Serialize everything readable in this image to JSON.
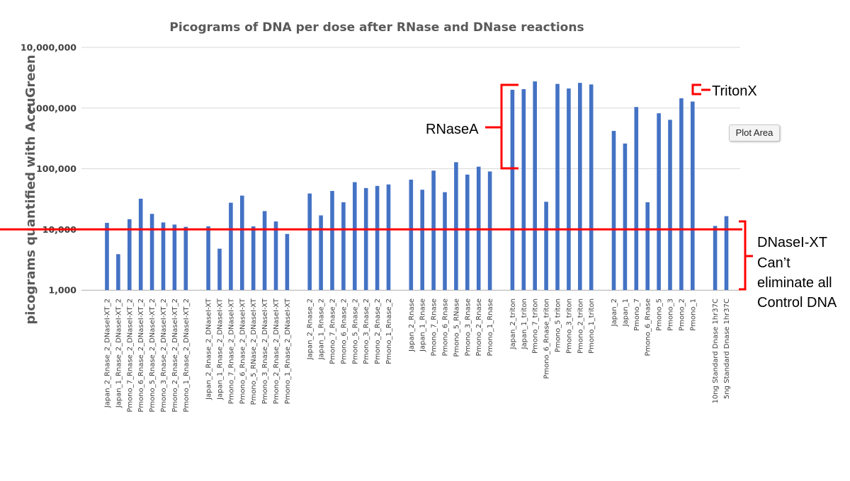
{
  "chart_data": {
    "type": "bar",
    "title": "Picograms of DNA per dose after RNase and DNase reactions",
    "ylabel": "picograms quantified with AccuGreen",
    "xlabel": "",
    "yscale": "log",
    "ylim": [
      1000,
      10000000
    ],
    "yticks": [
      "1,000",
      "10,000",
      "100,000",
      "1,000,000",
      "10,000,000"
    ],
    "grid": true,
    "bar_color": "#4472c4",
    "categories": [
      "Japan_2_Rnase_2_DNaseI-XT_2",
      "Japan_1_Rnase_2_DNaseI-XT_2",
      "Pmono_7_Rnase_2_DNaseI-XT_2",
      "Pmono_6_Rnase_2_DNaseI-XT_2",
      "Pmono_5_Rnase_2_DNaseI-XT_2",
      "Pmono_3_Rnase_2_DNaseI-XT_2",
      "Pmono_2_Rnase_2_DNaseI-XT_2",
      "Pmono_1_Rnase_2_DNaseI-XT_2",
      "",
      "Japan_2_Rnase_2_DNaseI-XT",
      "Japan_1_Rnase_2_DNaseI-XT",
      "Pmono_7_Rnase_2_DNaseI-XT",
      "Pmono_6_Rnase_2_DNaseI-XT",
      "Pmono_5_RNase_2_DNaseI-XT",
      "Pmono_3_Rnase_2_DNaseI-XT",
      "Pmono_2_Rnase_2_DNaseI-XT",
      "Pmono_1_Rnase_2_DNaseI-XT",
      "",
      "Japan_2_Rnase_2",
      "Japan_1_Rnase_2",
      "Pmono_7_Rnase_2",
      "Pmono_6_Rnase_2",
      "Pmono_5_Rnase_2",
      "Pmono_3_Rnase_2",
      "Pmono_2_Rnase_2",
      "Pmono_1_Rnase_2",
      "",
      "Japan_2_Rnase",
      "Japan_1_Rnase",
      "Pmono_7_Rnase",
      "Pmono_6_Rnase",
      "Pmono_5_RNase",
      "Pmono_3_Rnase",
      "Pmono_2_Rnase",
      "Pmono_1_Rnase",
      "",
      "Japan_2_triton",
      "Japan_1_triton",
      "Pmono_7_triton",
      "Pmono_6_Rnase_triton",
      "Pmono_5 triton",
      "Pmono_3_triton",
      "Pmono_2_triton",
      "Pmono_1_triton",
      "",
      "Japan_2",
      "Japan_1",
      "Pmono_7",
      "Pmono_6_Rnase",
      "Pmono_5",
      "Pmono_3",
      "Pmono_2",
      "Pmono_1",
      "",
      "10ng Standard Dnase 1hr37C",
      "5ng Standard Dnase 1hr37C"
    ],
    "values": [
      12800,
      3900,
      14700,
      32000,
      18000,
      13000,
      12000,
      11000,
      null,
      11200,
      4800,
      27500,
      36000,
      11200,
      20000,
      13500,
      8400,
      null,
      39000,
      17000,
      43000,
      28000,
      60000,
      48000,
      52000,
      55000,
      null,
      66000,
      45000,
      93000,
      41000,
      128000,
      80000,
      108000,
      90000,
      null,
      2000000,
      2050000,
      2750000,
      28500,
      2500000,
      2100000,
      2600000,
      2450000,
      null,
      420000,
      260000,
      1040000,
      28000,
      820000,
      640000,
      1450000,
      1280000,
      null,
      11400,
      16500
    ],
    "reference_line": {
      "value": 10000,
      "color": "#ff0000"
    },
    "annotations": {
      "rnasea": "RNaseA",
      "tritonx": "TritonX",
      "dnase_line1": "DNaseI-XT",
      "dnase_line2": "Can’t",
      "dnase_line3": "eliminate all",
      "dnase_line4": "Control DNA"
    },
    "annotation_color": "#ff0000"
  },
  "tooltip": {
    "label": "Plot Area"
  }
}
